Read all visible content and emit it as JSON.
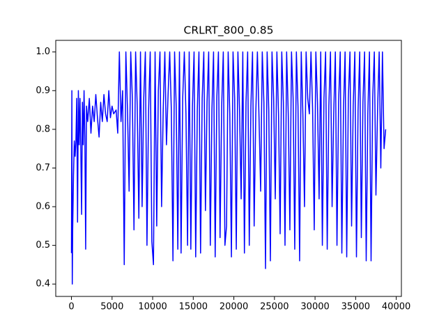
{
  "chart_data": {
    "type": "line",
    "title": "CRLRT_800_0.85",
    "x": [
      0,
      50,
      100,
      150,
      250,
      350,
      450,
      550,
      650,
      750,
      850,
      950,
      1050,
      1150,
      1250,
      1350,
      1450,
      1550,
      1650,
      1750,
      1850,
      2000,
      2200,
      2400,
      2600,
      2800,
      3000,
      3200,
      3400,
      3600,
      3800,
      4000,
      4200,
      4400,
      4600,
      4800,
      5000,
      5200,
      5500,
      5700,
      5900,
      6100,
      6300,
      6500,
      6700,
      6900,
      7100,
      7300,
      7500,
      7700,
      7900,
      8100,
      8300,
      8500,
      8700,
      8900,
      9100,
      9300,
      9500,
      9700,
      9900,
      10100,
      10300,
      10500,
      10700,
      10900,
      11100,
      11300,
      11500,
      11700,
      11900,
      12100,
      12300,
      12500,
      12700,
      12900,
      13100,
      13300,
      13500,
      13700,
      13900,
      14100,
      14300,
      14500,
      14700,
      14900,
      15100,
      15300,
      15500,
      15700,
      15900,
      16100,
      16300,
      16500,
      16700,
      16900,
      17100,
      17300,
      17500,
      17700,
      17900,
      18100,
      18300,
      18500,
      18700,
      18900,
      19100,
      19300,
      19500,
      19700,
      19900,
      20100,
      20300,
      20500,
      20700,
      20900,
      21100,
      21300,
      21500,
      21700,
      21900,
      22100,
      22300,
      22500,
      22700,
      22900,
      23100,
      23300,
      23500,
      23700,
      23900,
      24100,
      24300,
      24500,
      24700,
      24900,
      25100,
      25300,
      25500,
      25700,
      25900,
      26100,
      26300,
      26500,
      26700,
      26900,
      27100,
      27300,
      27500,
      27700,
      27900,
      28100,
      28300,
      28500,
      28700,
      28900,
      29100,
      29300,
      29500,
      29700,
      29900,
      30100,
      30300,
      30500,
      30700,
      30900,
      31100,
      31300,
      31500,
      31700,
      31900,
      32100,
      32300,
      32500,
      32700,
      32900,
      33100,
      33300,
      33500,
      33700,
      33900,
      34100,
      34300,
      34500,
      34700,
      34900,
      35100,
      35300,
      35500,
      35700,
      35900,
      36100,
      36300,
      36500,
      36700,
      36900,
      37100,
      37300,
      37500,
      37700,
      37900,
      38100,
      38300,
      38500,
      38700
    ],
    "series": [
      {
        "name": "CRLRT_800_0.85",
        "color": "#0000ff",
        "values": [
          0.48,
          0.9,
          0.4,
          0.54,
          0.68,
          0.77,
          0.73,
          0.77,
          0.88,
          0.56,
          0.9,
          0.76,
          0.88,
          0.75,
          0.58,
          0.87,
          0.76,
          0.9,
          0.78,
          0.49,
          0.86,
          0.82,
          0.88,
          0.79,
          0.86,
          0.82,
          0.89,
          0.83,
          0.78,
          0.87,
          0.82,
          0.89,
          0.84,
          0.82,
          0.9,
          0.83,
          0.86,
          0.84,
          0.85,
          0.79,
          1.0,
          0.82,
          0.9,
          0.45,
          1.0,
          0.85,
          0.64,
          1.0,
          0.88,
          0.54,
          1.0,
          0.86,
          0.57,
          1.0,
          0.6,
          0.88,
          1.0,
          0.5,
          0.85,
          1.0,
          0.51,
          0.45,
          1.0,
          0.55,
          0.9,
          1.0,
          0.6,
          0.85,
          1.0,
          0.76,
          0.89,
          1.0,
          0.85,
          0.46,
          1.0,
          0.86,
          0.49,
          1.0,
          0.48,
          0.88,
          1.0,
          0.84,
          0.5,
          1.0,
          0.49,
          0.86,
          1.0,
          0.47,
          0.85,
          1.0,
          0.48,
          0.88,
          1.0,
          0.59,
          0.87,
          1.0,
          0.5,
          0.85,
          1.0,
          0.47,
          0.88,
          1.0,
          0.52,
          0.86,
          1.0,
          0.5,
          0.55,
          1.0,
          0.84,
          0.47,
          1.0,
          0.88,
          0.49,
          1.0,
          0.85,
          0.62,
          1.0,
          0.48,
          0.87,
          1.0,
          0.5,
          0.86,
          1.0,
          0.55,
          0.84,
          1.0,
          0.83,
          0.64,
          1.0,
          0.87,
          0.44,
          1.0,
          0.85,
          0.46,
          1.0,
          0.88,
          0.62,
          1.0,
          0.84,
          0.53,
          1.0,
          0.87,
          0.5,
          1.0,
          0.84,
          0.54,
          1.0,
          0.88,
          0.49,
          1.0,
          0.86,
          0.46,
          1.0,
          0.84,
          0.6,
          1.0,
          0.88,
          0.84,
          1.0,
          0.85,
          0.54,
          1.0,
          0.87,
          0.62,
          1.0,
          0.5,
          0.88,
          1.0,
          0.49,
          0.86,
          1.0,
          0.6,
          0.84,
          1.0,
          0.5,
          0.87,
          1.0,
          0.48,
          0.85,
          1.0,
          0.47,
          0.88,
          1.0,
          0.55,
          0.86,
          1.0,
          0.47,
          0.85,
          1.0,
          0.52,
          0.87,
          1.0,
          0.46,
          0.84,
          1.0,
          0.46,
          0.88,
          1.0,
          0.63,
          0.85,
          1.0,
          0.7,
          1.0,
          0.75,
          0.8
        ]
      }
    ],
    "xlim": [
      -1935,
      40635
    ],
    "ylim": [
      0.368,
      1.03
    ],
    "xticks": [
      0,
      5000,
      10000,
      15000,
      20000,
      25000,
      30000,
      35000,
      40000
    ],
    "yticks": [
      0.4,
      0.5,
      0.6,
      0.7,
      0.8,
      0.9,
      {
        "value": 1,
        "label": "1.0"
      }
    ]
  }
}
